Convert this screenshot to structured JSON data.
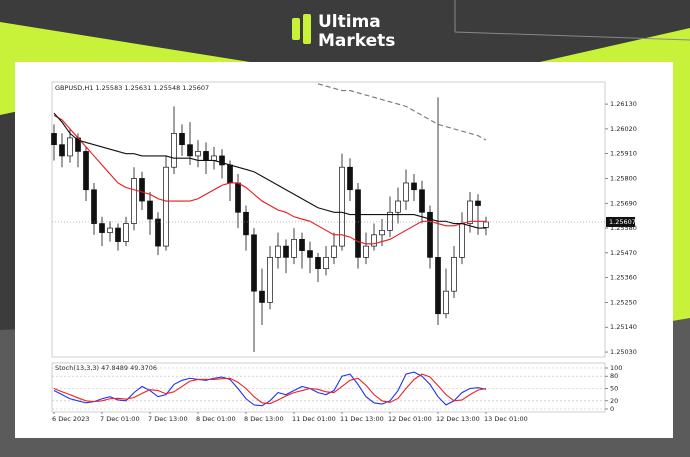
{
  "brand": {
    "name": [
      "Ultima",
      "Markets"
    ]
  },
  "chart_data": [
    {
      "type": "candlestick",
      "title": "GBPUSD,H1  1.25583 1.25631 1.25548 1.25607",
      "categories": [
        "6 Dec 2023",
        null,
        null,
        null,
        null,
        null,
        "7 Dec 01:00",
        null,
        null,
        null,
        null,
        null,
        "7 Dec 13:00",
        null,
        null,
        null,
        null,
        null,
        "8 Dec 01:00",
        null,
        null,
        null,
        null,
        null,
        "8 Dec 13:00",
        null,
        null,
        null,
        null,
        null,
        "11 Dec 01:00",
        null,
        null,
        null,
        null,
        null,
        "11 Dec 13:00",
        null,
        null,
        null,
        null,
        null,
        "12 Dec 01:00",
        null,
        null,
        null,
        null,
        null,
        "12 Dec 13:00",
        null,
        null,
        null,
        null,
        null,
        "13 Dec 01:00"
      ],
      "ohlc": [
        [
          1.26,
          1.2604,
          1.2588,
          1.2595
        ],
        [
          1.2595,
          1.26,
          1.2585,
          1.259
        ],
        [
          1.259,
          1.2602,
          1.2587,
          1.2598
        ],
        [
          1.2598,
          1.26,
          1.2585,
          1.2592
        ],
        [
          1.2592,
          1.2594,
          1.257,
          1.2575
        ],
        [
          1.2575,
          1.2578,
          1.2555,
          1.256
        ],
        [
          1.256,
          1.2563,
          1.255,
          1.2556
        ],
        [
          1.2556,
          1.2561,
          1.2552,
          1.2558
        ],
        [
          1.2558,
          1.256,
          1.2548,
          1.2552
        ],
        [
          1.2552,
          1.2563,
          1.255,
          1.256
        ],
        [
          1.256,
          1.2585,
          1.2557,
          1.258
        ],
        [
          1.258,
          1.2583,
          1.2566,
          1.257
        ],
        [
          1.257,
          1.2574,
          1.2555,
          1.2562
        ],
        [
          1.2562,
          1.2565,
          1.2546,
          1.255
        ],
        [
          1.255,
          1.259,
          1.2548,
          1.2585
        ],
        [
          1.2585,
          1.2612,
          1.2582,
          1.26
        ],
        [
          1.26,
          1.2604,
          1.259,
          1.2595
        ],
        [
          1.2595,
          1.2605,
          1.2586,
          1.259
        ],
        [
          1.259,
          1.2597,
          1.2585,
          1.2592
        ],
        [
          1.2592,
          1.2596,
          1.2582,
          1.2588
        ],
        [
          1.2588,
          1.2594,
          1.2584,
          1.259
        ],
        [
          1.259,
          1.2593,
          1.258,
          1.2586
        ],
        [
          1.2586,
          1.2588,
          1.257,
          1.2578
        ],
        [
          1.2578,
          1.2582,
          1.2558,
          1.2565
        ],
        [
          1.2565,
          1.2568,
          1.2548,
          1.2555
        ],
        [
          1.2555,
          1.2558,
          1.2503,
          1.253
        ],
        [
          1.253,
          1.254,
          1.2515,
          1.2525
        ],
        [
          1.2525,
          1.255,
          1.2522,
          1.2545
        ],
        [
          1.2545,
          1.2556,
          1.254,
          1.255
        ],
        [
          1.255,
          1.2553,
          1.2538,
          1.2545
        ],
        [
          1.2545,
          1.2558,
          1.2542,
          1.2553
        ],
        [
          1.2553,
          1.2556,
          1.254,
          1.2548
        ],
        [
          1.2548,
          1.2552,
          1.2538,
          1.2545
        ],
        [
          1.2545,
          1.2547,
          1.2534,
          1.254
        ],
        [
          1.254,
          1.255,
          1.2537,
          1.2545
        ],
        [
          1.2545,
          1.2556,
          1.2542,
          1.255
        ],
        [
          1.255,
          1.2591,
          1.2548,
          1.2585
        ],
        [
          1.2585,
          1.2589,
          1.257,
          1.2575
        ],
        [
          1.2575,
          1.2578,
          1.254,
          1.2545
        ],
        [
          1.2545,
          1.2556,
          1.2542,
          1.255
        ],
        [
          1.255,
          1.256,
          1.2548,
          1.2555
        ],
        [
          1.2555,
          1.2562,
          1.255,
          1.2557
        ],
        [
          1.2557,
          1.2572,
          1.2554,
          1.2565
        ],
        [
          1.2565,
          1.2576,
          1.256,
          1.257
        ],
        [
          1.257,
          1.2584,
          1.2566,
          1.2578
        ],
        [
          1.2578,
          1.2582,
          1.257,
          1.2575
        ],
        [
          1.2575,
          1.2579,
          1.256,
          1.2565
        ],
        [
          1.2565,
          1.2568,
          1.254,
          1.2545
        ],
        [
          1.2545,
          1.2616,
          1.2515,
          1.252
        ],
        [
          1.252,
          1.254,
          1.2518,
          1.253
        ],
        [
          1.253,
          1.255,
          1.2527,
          1.2545
        ],
        [
          1.2545,
          1.2565,
          1.2542,
          1.256
        ],
        [
          1.256,
          1.2574,
          1.2556,
          1.257
        ],
        [
          1.257,
          1.2573,
          1.2555,
          1.2568
        ],
        [
          1.25583,
          1.25631,
          1.25548,
          1.25607
        ]
      ],
      "series": [
        {
          "color": "#e8191c",
          "values": [
            1.2608,
            1.2606,
            1.2602,
            1.2598,
            1.2594,
            1.259,
            1.2586,
            1.2582,
            1.2578,
            1.2576,
            1.2575,
            1.2574,
            1.2573,
            1.2571,
            1.257,
            1.257,
            1.257,
            1.257,
            1.2571,
            1.2573,
            1.2575,
            1.2577,
            1.2578,
            1.2578,
            1.2576,
            1.2573,
            1.257,
            1.2568,
            1.2566,
            1.2565,
            1.2563,
            1.2562,
            1.2561,
            1.2559,
            1.2557,
            1.2555,
            1.2555,
            1.2554,
            1.2552,
            1.2551,
            1.2551,
            1.2552,
            1.2553,
            1.2555,
            1.2557,
            1.2559,
            1.2561,
            1.2561,
            1.256,
            1.2559,
            1.2559,
            1.256,
            1.2561,
            1.2561,
            1.2561
          ]
        },
        {
          "color": "#111111",
          "values": [
            1.2609,
            1.2605,
            1.26,
            1.2597,
            1.2596,
            1.2595,
            1.2594,
            1.2593,
            1.2592,
            1.2591,
            1.2591,
            1.259,
            1.259,
            1.259,
            1.259,
            1.2589,
            1.2589,
            1.2589,
            1.2588,
            1.2588,
            1.2588,
            1.2587,
            1.2586,
            1.2585,
            1.2584,
            1.2583,
            1.2581,
            1.2579,
            1.2577,
            1.2575,
            1.2573,
            1.2571,
            1.2569,
            1.2567,
            1.2566,
            1.2565,
            1.2565,
            1.2564,
            1.2564,
            1.2564,
            1.2564,
            1.2564,
            1.2564,
            1.2564,
            1.2564,
            1.2564,
            1.2563,
            1.2562,
            1.2561,
            1.2561,
            1.256,
            1.256,
            1.2559,
            1.2558,
            1.2558
          ]
        },
        {
          "color": "#777777",
          "dashed": true,
          "values": [
            null,
            null,
            null,
            null,
            null,
            null,
            null,
            null,
            null,
            null,
            null,
            null,
            null,
            null,
            null,
            null,
            null,
            null,
            null,
            null,
            null,
            null,
            null,
            null,
            null,
            null,
            null,
            null,
            null,
            null,
            null,
            null,
            null,
            1.2622,
            1.2621,
            1.262,
            1.2619,
            1.2619,
            1.2618,
            1.2617,
            1.2616,
            1.2615,
            1.2614,
            1.2613,
            1.2612,
            1.261,
            1.2608,
            1.2606,
            1.2604,
            1.2603,
            1.2602,
            1.2601,
            1.26,
            1.2599,
            1.2597
          ]
        }
      ],
      "ylim": [
        1.25008,
        1.26228
      ],
      "yticks": [
        {
          "value": 1.2613,
          "label": "1.26130"
        },
        {
          "value": 1.2602,
          "label": "1.26020"
        },
        {
          "value": 1.2591,
          "label": "1.25910"
        },
        {
          "value": 1.258,
          "label": "1.25800"
        },
        {
          "value": 1.2569,
          "label": "1.25690"
        },
        {
          "value": 1.2558,
          "label": "1.25580"
        },
        {
          "value": 1.2547,
          "label": "1.25470"
        },
        {
          "value": 1.2536,
          "label": "1.25360"
        },
        {
          "value": 1.2525,
          "label": "1.25250"
        },
        {
          "value": 1.2514,
          "label": "1.25140"
        },
        {
          "value": 1.2503,
          "label": "1.25030"
        }
      ],
      "last_price": {
        "value": 1.25607,
        "label": "1.25607"
      }
    },
    {
      "type": "line",
      "title": "Stoch(13,3,3) 47.8489 49.3706",
      "series": [
        {
          "color": "#2233ee",
          "values": [
            45,
            35,
            25,
            20,
            15,
            18,
            25,
            30,
            22,
            20,
            40,
            55,
            45,
            30,
            35,
            60,
            70,
            75,
            72,
            70,
            75,
            78,
            72,
            50,
            25,
            10,
            8,
            20,
            40,
            35,
            45,
            55,
            50,
            40,
            35,
            45,
            80,
            85,
            60,
            30,
            15,
            12,
            20,
            45,
            85,
            90,
            80,
            60,
            30,
            10,
            20,
            40,
            50,
            52,
            48
          ]
        },
        {
          "color": "#ee2222",
          "values": [
            50,
            42,
            35,
            27,
            20,
            18,
            20,
            25,
            26,
            24,
            28,
            38,
            47,
            45,
            37,
            42,
            55,
            68,
            72,
            72,
            72,
            74,
            75,
            65,
            50,
            30,
            15,
            13,
            22,
            32,
            40,
            45,
            50,
            48,
            42,
            40,
            55,
            70,
            75,
            58,
            35,
            20,
            16,
            26,
            50,
            72,
            85,
            78,
            57,
            35,
            20,
            22,
            35,
            46,
            50
          ]
        }
      ],
      "ylim": [
        0,
        100
      ],
      "yticks": [
        100,
        80,
        50,
        20,
        0
      ]
    }
  ]
}
